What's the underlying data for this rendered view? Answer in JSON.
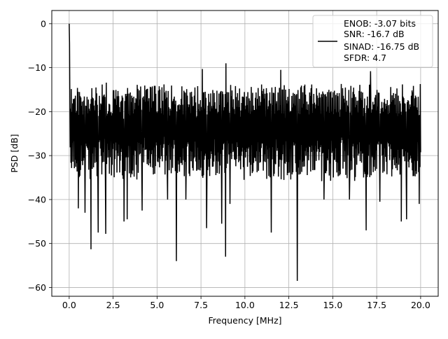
{
  "chart_data": {
    "type": "line",
    "title": "",
    "xlabel": "Frequency [MHz]",
    "ylabel": "PSD [dB]",
    "xlim": [
      -0.99,
      21.0
    ],
    "ylim": [
      -62.0,
      3.0
    ],
    "xticks": [
      0.0,
      2.5,
      5.0,
      7.5,
      10.0,
      12.5,
      15.0,
      17.5,
      20.0
    ],
    "xtick_labels": [
      "0.0",
      "2.5",
      "5.0",
      "7.5",
      "10.0",
      "12.5",
      "15.0",
      "17.5",
      "20.0"
    ],
    "yticks": [
      0,
      -10,
      -20,
      -30,
      -40,
      -50,
      -60
    ],
    "ytick_labels": [
      "0",
      "−10",
      "−20",
      "−30",
      "−40",
      "−50",
      "−60"
    ],
    "grid": true,
    "legend_position": "top-right",
    "legend_lines": [
      "ENOB: -3.07 bits",
      "SNR: -16.7 dB",
      "SINAD: -16.75 dB",
      "SFDR: 4.7"
    ],
    "series": [
      {
        "color": "#000000",
        "x_range": [
          0.0,
          20.0
        ],
        "samples": 1024,
        "baseline_db": -23.5,
        "noise_floor_spread_db": [
          -37.0,
          -12.5
        ],
        "peaks": [
          {
            "x": 0.0,
            "y": 0.0
          },
          {
            "x": 0.02,
            "y": -4.5
          },
          {
            "x": 8.92,
            "y": -9.0
          },
          {
            "x": 7.58,
            "y": -10.3
          },
          {
            "x": 12.04,
            "y": -10.5
          },
          {
            "x": 17.15,
            "y": -10.8
          }
        ],
        "notches": [
          {
            "x": 12.98,
            "y": -58.5
          },
          {
            "x": 6.1,
            "y": -54.0
          },
          {
            "x": 8.9,
            "y": -53.0
          },
          {
            "x": 1.24,
            "y": -51.3
          },
          {
            "x": 1.65,
            "y": -47.5
          },
          {
            "x": 2.08,
            "y": -47.8
          },
          {
            "x": 7.82,
            "y": -46.5
          },
          {
            "x": 8.68,
            "y": -45.5
          },
          {
            "x": 11.5,
            "y": -47.5
          },
          {
            "x": 16.9,
            "y": -47.0
          },
          {
            "x": 19.2,
            "y": -44.5
          },
          {
            "x": 18.9,
            "y": -45.0
          },
          {
            "x": 0.52,
            "y": -42.0
          },
          {
            "x": 0.9,
            "y": -43.0
          },
          {
            "x": 3.12,
            "y": -45.0
          },
          {
            "x": 3.3,
            "y": -44.5
          },
          {
            "x": 4.15,
            "y": -42.5
          },
          {
            "x": 5.6,
            "y": -40.0
          },
          {
            "x": 6.64,
            "y": -40.0
          },
          {
            "x": 9.15,
            "y": -41.0
          },
          {
            "x": 14.5,
            "y": -40.0
          },
          {
            "x": 15.95,
            "y": -40.0
          },
          {
            "x": 17.68,
            "y": -40.5
          },
          {
            "x": 19.92,
            "y": -41.0
          }
        ]
      }
    ]
  }
}
